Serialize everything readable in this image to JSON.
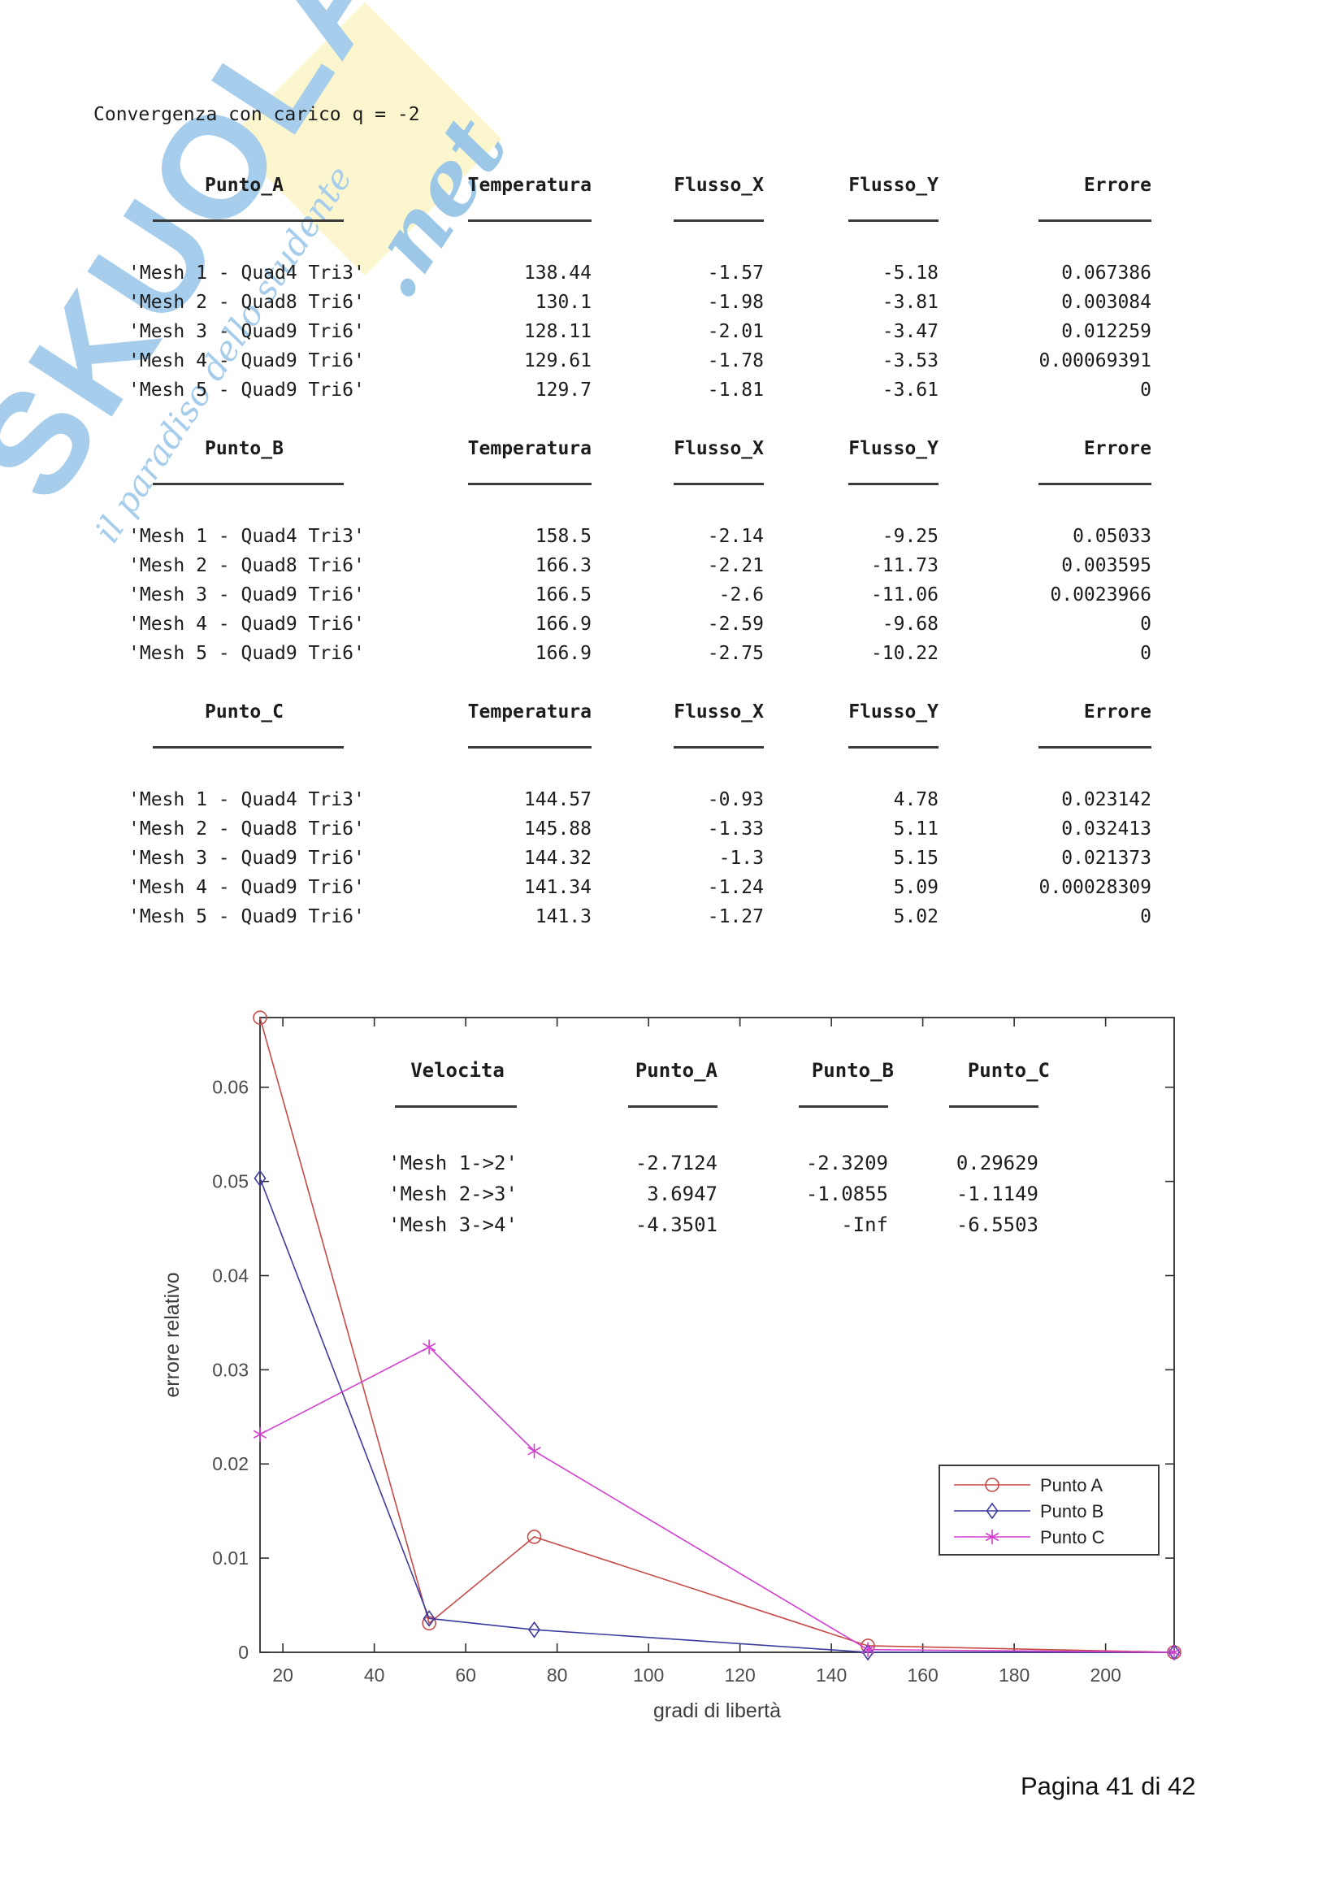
{
  "page": {
    "title": "Convergenza con carico q = -2",
    "footer": "Pagina 41 di 42"
  },
  "watermark": {
    "brand": "SKUOLA",
    "suffix": ".net",
    "tagline": "il paradiso dello studente",
    "brand_color": "#a6cdeb",
    "script_color": "#9cc7e7",
    "diamond_color": "#fbf6cd"
  },
  "tables": [
    {
      "headers": [
        "Punto_A",
        "Temperatura",
        "Flusso_X",
        "Flusso_Y",
        "Errore"
      ],
      "rows": [
        {
          "label": "'Mesh 1 - Quad4 Tri3'",
          "values": [
            "138.44",
            "-1.57",
            "-5.18",
            "0.067386"
          ]
        },
        {
          "label": "'Mesh 2 - Quad8 Tri6'",
          "values": [
            "130.1",
            "-1.98",
            "-3.81",
            "0.003084"
          ]
        },
        {
          "label": "'Mesh 3 - Quad9 Tri6'",
          "values": [
            "128.11",
            "-2.01",
            "-3.47",
            "0.012259"
          ]
        },
        {
          "label": "'Mesh 4 - Quad9 Tri6'",
          "values": [
            "129.61",
            "-1.78",
            "-3.53",
            "0.00069391"
          ]
        },
        {
          "label": "'Mesh 5 - Quad9 Tri6'",
          "values": [
            "129.7",
            "-1.81",
            "-3.61",
            "0"
          ]
        }
      ]
    },
    {
      "headers": [
        "Punto_B",
        "Temperatura",
        "Flusso_X",
        "Flusso_Y",
        "Errore"
      ],
      "rows": [
        {
          "label": "'Mesh 1 - Quad4 Tri3'",
          "values": [
            "158.5",
            "-2.14",
            "-9.25",
            "0.05033"
          ]
        },
        {
          "label": "'Mesh 2 - Quad8 Tri6'",
          "values": [
            "166.3",
            "-2.21",
            "-11.73",
            "0.003595"
          ]
        },
        {
          "label": "'Mesh 3 - Quad9 Tri6'",
          "values": [
            "166.5",
            "-2.6",
            "-11.06",
            "0.0023966"
          ]
        },
        {
          "label": "'Mesh 4 - Quad9 Tri6'",
          "values": [
            "166.9",
            "-2.59",
            "-9.68",
            "0"
          ]
        },
        {
          "label": "'Mesh 5 - Quad9 Tri6'",
          "values": [
            "166.9",
            "-2.75",
            "-10.22",
            "0"
          ]
        }
      ]
    },
    {
      "headers": [
        "Punto_C",
        "Temperatura",
        "Flusso_X",
        "Flusso_Y",
        "Errore"
      ],
      "rows": [
        {
          "label": "'Mesh 1 - Quad4 Tri3'",
          "values": [
            "144.57",
            "-0.93",
            "4.78",
            "0.023142"
          ]
        },
        {
          "label": "'Mesh 2 - Quad8 Tri6'",
          "values": [
            "145.88",
            "-1.33",
            "5.11",
            "0.032413"
          ]
        },
        {
          "label": "'Mesh 3 - Quad9 Tri6'",
          "values": [
            "144.32",
            "-1.3",
            "5.15",
            "0.021373"
          ]
        },
        {
          "label": "'Mesh 4 - Quad9 Tri6'",
          "values": [
            "141.34",
            "-1.24",
            "5.09",
            "0.00028309"
          ]
        },
        {
          "label": "'Mesh 5 - Quad9 Tri6'",
          "values": [
            "141.3",
            "-1.27",
            "5.02",
            "0"
          ]
        }
      ]
    }
  ],
  "chart_data": {
    "type": "line",
    "title": "",
    "xlabel": "gradi di libertà",
    "ylabel": "errore relativo",
    "xlim": [
      15,
      215
    ],
    "ylim": [
      0,
      0.0674
    ],
    "xticks": [
      20,
      40,
      60,
      80,
      100,
      120,
      140,
      160,
      180,
      200
    ],
    "yticks": [
      0,
      0.01,
      0.02,
      0.03,
      0.04,
      0.05,
      0.06
    ],
    "grid": false,
    "x": [
      15,
      52,
      75,
      148,
      215
    ],
    "series": [
      {
        "name": "Punto A",
        "color": "#c64a48",
        "marker": "circle",
        "values": [
          0.067386,
          0.003084,
          0.012259,
          0.00069391,
          0
        ]
      },
      {
        "name": "Punto B",
        "color": "#3c3ca0",
        "marker": "diamond",
        "values": [
          0.05033,
          0.003595,
          0.0023966,
          0,
          0
        ]
      },
      {
        "name": "Punto C",
        "color": "#d13fd1",
        "marker": "asterisk",
        "values": [
          0.023142,
          0.032413,
          0.021373,
          0.00028309,
          0
        ]
      }
    ],
    "legend": {
      "position": "right-middle",
      "entries": [
        "Punto A",
        "Punto B",
        "Punto C"
      ]
    },
    "inner_table": {
      "headers": [
        "Velocita",
        "Punto_A",
        "Punto_B",
        "Punto_C"
      ],
      "rows": [
        {
          "label": "'Mesh 1->2'",
          "values": [
            "-2.7124",
            "-2.3209",
            "0.29629"
          ]
        },
        {
          "label": "'Mesh 2->3'",
          "values": [
            "3.6947",
            "-1.0855",
            "-1.1149"
          ]
        },
        {
          "label": "'Mesh 3->4'",
          "values": [
            "-4.3501",
            "-Inf",
            "-6.5503"
          ]
        }
      ]
    }
  }
}
